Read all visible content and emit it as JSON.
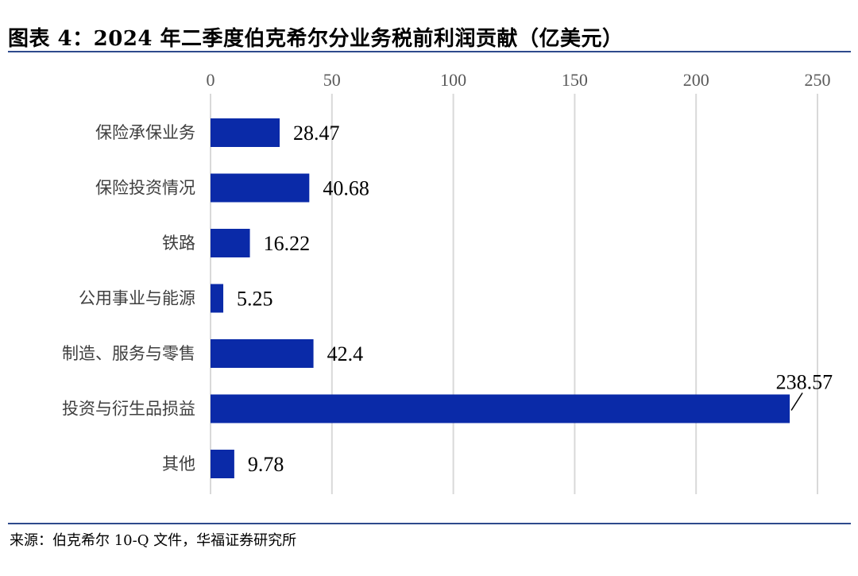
{
  "title": "图表 4：2024 年二季度伯克希尔分业务税前利润贡献（亿美元）",
  "source": "来源：伯克希尔 10-Q 文件，华福证券研究所",
  "colors": {
    "bar": "#0A2AA8",
    "grid": "#D9D9D9",
    "rule": "#2E4A8C",
    "label_text": "#3F3F3F",
    "tick_text": "#595959"
  },
  "chart_data": {
    "type": "bar",
    "orientation": "horizontal",
    "categories": [
      "保险承保业务",
      "保险投资情况",
      "铁路",
      "公用事业与能源",
      "制造、服务与零售",
      "投资与衍生品损益",
      "其他"
    ],
    "values": [
      28.47,
      40.68,
      16.22,
      5.25,
      42.4,
      238.57,
      9.78
    ],
    "value_labels": [
      "28.47",
      "40.68",
      "16.22",
      "5.25",
      "42.4",
      "238.57",
      "9.78"
    ],
    "x_axis_position": "top",
    "xlim": [
      0,
      250
    ],
    "xticks": [
      0,
      50,
      100,
      150,
      200,
      250
    ],
    "grid": true,
    "legend": "none"
  }
}
